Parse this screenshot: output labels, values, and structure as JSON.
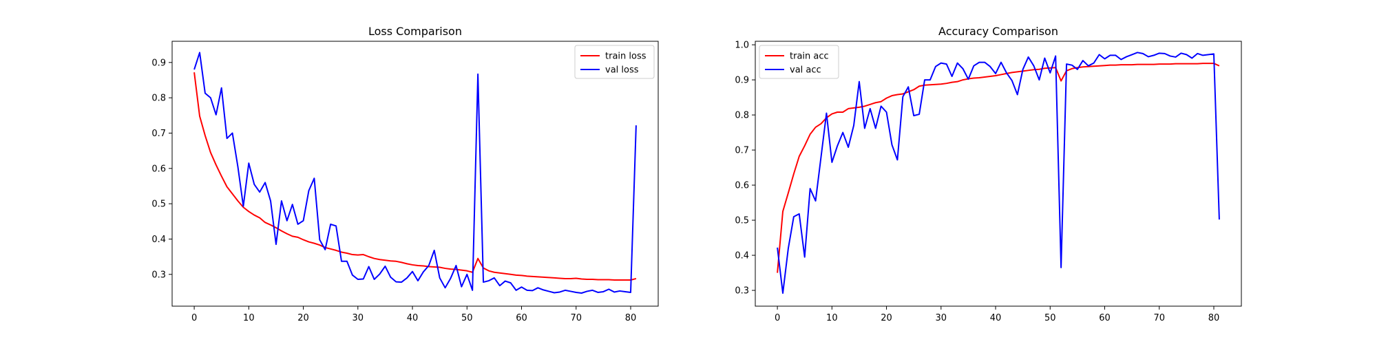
{
  "chart_data": [
    {
      "type": "line",
      "title": "Loss Comparison",
      "xlabel": "",
      "ylabel": "",
      "xlim": [
        -4.05,
        85.05
      ],
      "ylim": [
        0.21,
        0.96
      ],
      "xticks": [
        0,
        10,
        20,
        30,
        40,
        50,
        60,
        70,
        80
      ],
      "yticks": [
        0.3,
        0.4,
        0.5,
        0.6,
        0.7,
        0.8,
        0.9
      ],
      "grid": false,
      "legend_position": "top-right",
      "series": [
        {
          "name": "train loss",
          "color": "#ff0000",
          "values": [
            0.872,
            0.748,
            0.693,
            0.645,
            0.61,
            0.578,
            0.548,
            0.528,
            0.508,
            0.49,
            0.478,
            0.468,
            0.46,
            0.447,
            0.44,
            0.432,
            0.423,
            0.415,
            0.408,
            0.405,
            0.398,
            0.392,
            0.388,
            0.383,
            0.376,
            0.372,
            0.368,
            0.363,
            0.36,
            0.356,
            0.355,
            0.356,
            0.35,
            0.345,
            0.342,
            0.34,
            0.338,
            0.337,
            0.334,
            0.33,
            0.327,
            0.325,
            0.324,
            0.322,
            0.321,
            0.32,
            0.317,
            0.315,
            0.314,
            0.312,
            0.31,
            0.306,
            0.345,
            0.318,
            0.31,
            0.306,
            0.304,
            0.302,
            0.3,
            0.298,
            0.297,
            0.295,
            0.294,
            0.293,
            0.292,
            0.291,
            0.29,
            0.289,
            0.288,
            0.288,
            0.289,
            0.287,
            0.286,
            0.286,
            0.285,
            0.285,
            0.285,
            0.284,
            0.284,
            0.284,
            0.284,
            0.288
          ]
        },
        {
          "name": "val loss",
          "color": "#0000ff",
          "values": [
            0.88,
            0.928,
            0.813,
            0.8,
            0.752,
            0.828,
            0.685,
            0.7,
            0.605,
            0.493,
            0.615,
            0.555,
            0.533,
            0.56,
            0.508,
            0.385,
            0.508,
            0.452,
            0.498,
            0.442,
            0.452,
            0.537,
            0.572,
            0.398,
            0.37,
            0.442,
            0.437,
            0.337,
            0.337,
            0.298,
            0.286,
            0.287,
            0.322,
            0.286,
            0.301,
            0.323,
            0.292,
            0.279,
            0.278,
            0.29,
            0.308,
            0.282,
            0.307,
            0.325,
            0.368,
            0.29,
            0.262,
            0.289,
            0.325,
            0.265,
            0.3,
            0.255,
            0.867,
            0.278,
            0.282,
            0.29,
            0.268,
            0.281,
            0.276,
            0.255,
            0.264,
            0.255,
            0.254,
            0.262,
            0.256,
            0.252,
            0.248,
            0.25,
            0.255,
            0.252,
            0.249,
            0.247,
            0.252,
            0.255,
            0.249,
            0.251,
            0.258,
            0.25,
            0.253,
            0.251,
            0.249,
            0.722
          ]
        }
      ]
    },
    {
      "type": "line",
      "title": "Accuracy Comparison",
      "xlabel": "",
      "ylabel": "",
      "xlim": [
        -4.05,
        85.05
      ],
      "ylim": [
        0.255,
        1.01
      ],
      "xticks": [
        0,
        10,
        20,
        30,
        40,
        50,
        60,
        70,
        80
      ],
      "yticks": [
        0.3,
        0.4,
        0.5,
        0.6,
        0.7,
        0.8,
        0.9,
        1.0
      ],
      "grid": false,
      "legend_position": "top-left",
      "series": [
        {
          "name": "train acc",
          "color": "#ff0000",
          "values": [
            0.35,
            0.525,
            0.578,
            0.632,
            0.682,
            0.712,
            0.745,
            0.765,
            0.775,
            0.792,
            0.803,
            0.808,
            0.808,
            0.818,
            0.82,
            0.822,
            0.825,
            0.83,
            0.835,
            0.838,
            0.848,
            0.855,
            0.858,
            0.86,
            0.866,
            0.872,
            0.882,
            0.885,
            0.886,
            0.887,
            0.888,
            0.89,
            0.893,
            0.895,
            0.9,
            0.903,
            0.905,
            0.906,
            0.908,
            0.91,
            0.912,
            0.915,
            0.918,
            0.921,
            0.923,
            0.925,
            0.927,
            0.929,
            0.93,
            0.933,
            0.934,
            0.935,
            0.897,
            0.926,
            0.932,
            0.935,
            0.937,
            0.938,
            0.939,
            0.94,
            0.941,
            0.942,
            0.942,
            0.943,
            0.943,
            0.943,
            0.944,
            0.944,
            0.944,
            0.944,
            0.945,
            0.945,
            0.945,
            0.946,
            0.946,
            0.946,
            0.946,
            0.946,
            0.947,
            0.947,
            0.947,
            0.94
          ]
        },
        {
          "name": "val acc",
          "color": "#0000ff",
          "values": [
            0.422,
            0.292,
            0.42,
            0.51,
            0.518,
            0.395,
            0.59,
            0.555,
            0.68,
            0.805,
            0.665,
            0.712,
            0.75,
            0.708,
            0.77,
            0.895,
            0.762,
            0.818,
            0.762,
            0.825,
            0.808,
            0.715,
            0.672,
            0.852,
            0.88,
            0.798,
            0.802,
            0.9,
            0.9,
            0.938,
            0.948,
            0.945,
            0.91,
            0.948,
            0.932,
            0.902,
            0.94,
            0.95,
            0.95,
            0.938,
            0.918,
            0.95,
            0.92,
            0.898,
            0.858,
            0.93,
            0.965,
            0.94,
            0.9,
            0.962,
            0.92,
            0.968,
            0.365,
            0.945,
            0.942,
            0.93,
            0.955,
            0.94,
            0.948,
            0.972,
            0.96,
            0.97,
            0.97,
            0.958,
            0.966,
            0.972,
            0.978,
            0.975,
            0.966,
            0.97,
            0.976,
            0.975,
            0.968,
            0.965,
            0.976,
            0.972,
            0.962,
            0.975,
            0.97,
            0.972,
            0.974,
            0.502
          ]
        }
      ]
    }
  ]
}
